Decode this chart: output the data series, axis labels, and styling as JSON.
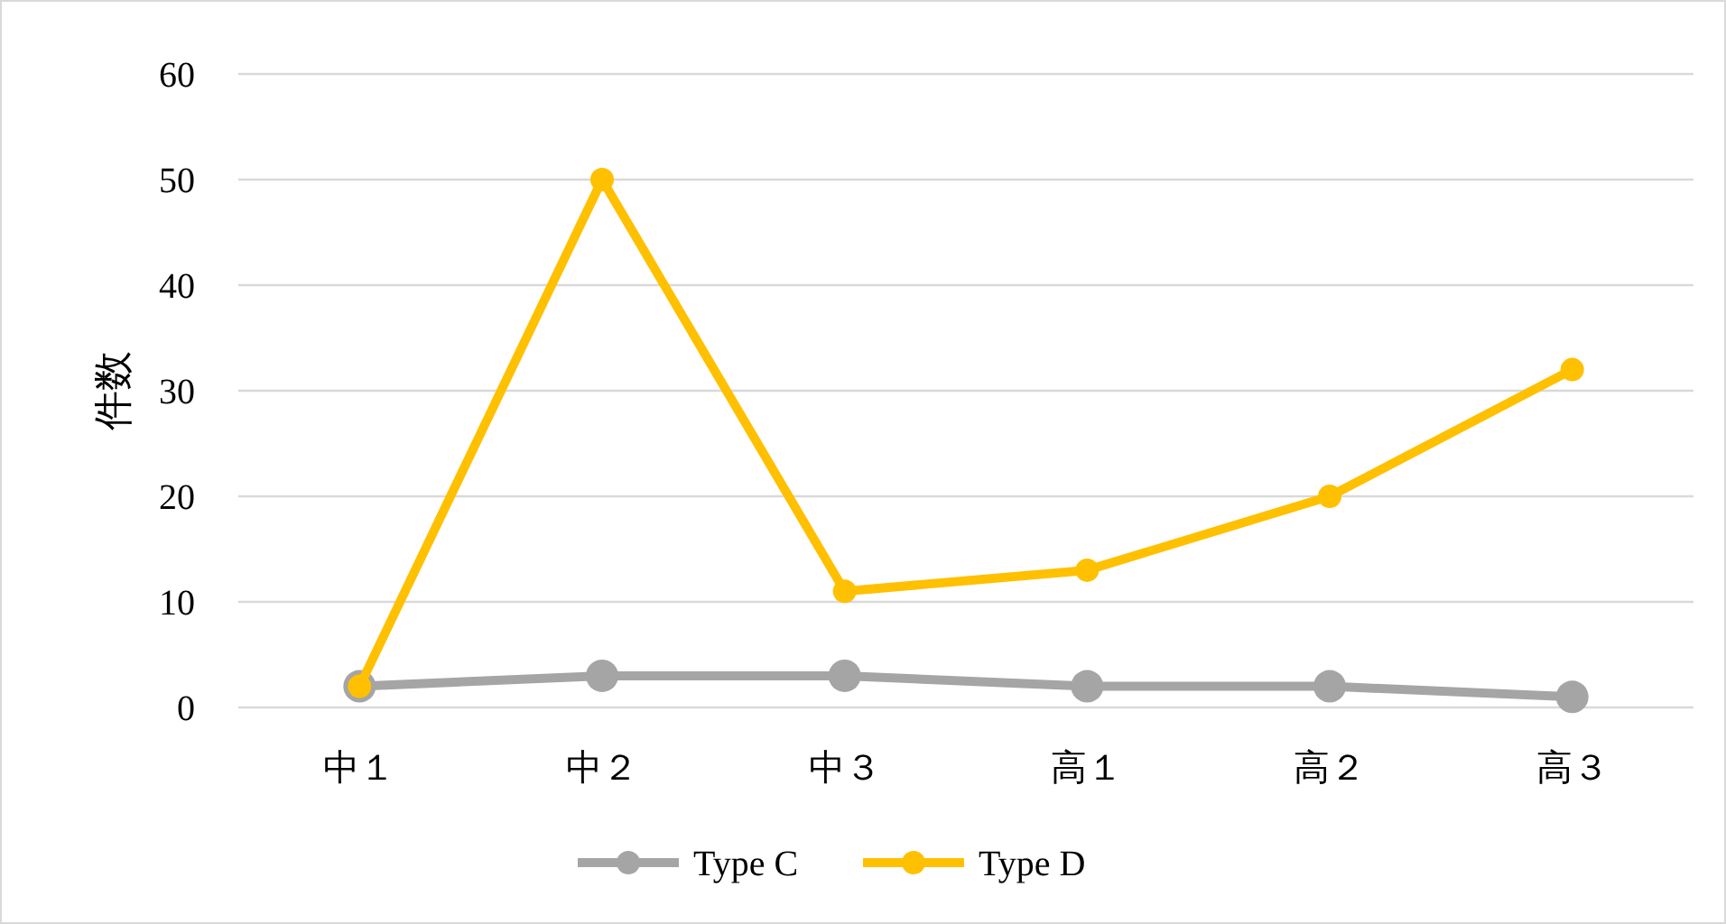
{
  "chart_data": {
    "type": "line",
    "ylabel": "件数",
    "categories": [
      "中１",
      "中２",
      "中３",
      "高１",
      "高２",
      "高３"
    ],
    "series": [
      {
        "name": "Type C",
        "color": "#a5a5a5",
        "values": [
          2,
          3,
          3,
          2,
          2,
          1
        ]
      },
      {
        "name": "Type D",
        "color": "#ffc000",
        "values": [
          2,
          50,
          11,
          13,
          20,
          32
        ]
      }
    ],
    "ylim": [
      0,
      60
    ],
    "yticks": [
      0,
      10,
      20,
      30,
      40,
      50,
      60
    ],
    "grid": "y",
    "legend": "bottom",
    "marker": "circle",
    "line_style": "solid"
  }
}
